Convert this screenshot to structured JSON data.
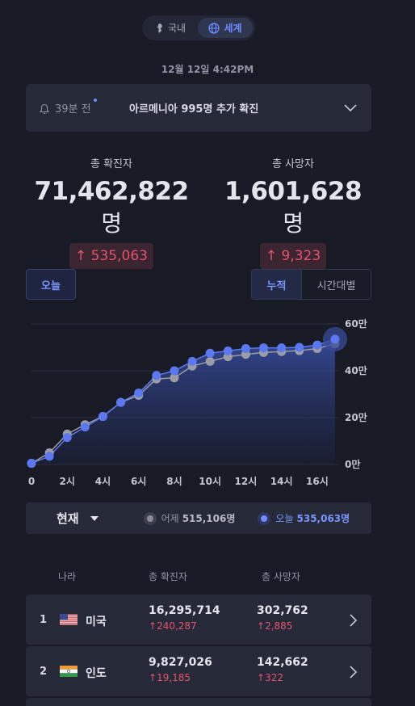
{
  "tabs": {
    "domestic": "국내",
    "world": "세계"
  },
  "timestamp": "12월 12일 4:42PM",
  "notice": {
    "ago": "39분 전",
    "message": "아르메니아 995명 추가 확진"
  },
  "stats": {
    "confirmed": {
      "label": "총 확진자",
      "value": "71,462,822",
      "unit": "명",
      "delta": "535,063"
    },
    "deaths": {
      "label": "총 사망자",
      "value": "1,601,628",
      "unit": "명",
      "delta": "9,323"
    }
  },
  "controls": {
    "today": "오늘",
    "cumulative": "누적",
    "hourly": "시간대별"
  },
  "chart_data": {
    "type": "line",
    "x": [
      0,
      1,
      2,
      3,
      4,
      5,
      6,
      7,
      8,
      9,
      10,
      11,
      12,
      13,
      14,
      15,
      16,
      17
    ],
    "xticks": [
      "0",
      "2시",
      "4시",
      "6시",
      "8시",
      "10시",
      "12시",
      "14시",
      "16시"
    ],
    "yticks": [
      "0만",
      "20만",
      "40만",
      "60만"
    ],
    "ylim": [
      0,
      600000
    ],
    "series": [
      {
        "name": "어제",
        "color": "#9a9ca6",
        "values": [
          5000,
          50000,
          130000,
          170000,
          205000,
          265000,
          295000,
          365000,
          370000,
          420000,
          440000,
          460000,
          470000,
          478000,
          482000,
          486000,
          495000,
          515106
        ]
      },
      {
        "name": "오늘",
        "color": "#5b78f0",
        "values": [
          5000,
          35000,
          115000,
          160000,
          205000,
          265000,
          305000,
          380000,
          400000,
          440000,
          475000,
          485000,
          495000,
          498000,
          498000,
          500000,
          510000,
          535063
        ]
      }
    ],
    "grid": true
  },
  "current": {
    "label": "현재",
    "yesterday_label": "어제",
    "yesterday_value": "515,106명",
    "today_label": "오늘",
    "today_value": "535,063명"
  },
  "table": {
    "headers": [
      "나라",
      "총 확진자",
      "총 사망자"
    ],
    "rows": [
      {
        "rank": "1",
        "country": "미국",
        "confirmed": "16,295,714",
        "confirmed_delta": "240,287",
        "deaths": "302,762",
        "deaths_delta": "2,885"
      },
      {
        "rank": "2",
        "country": "인도",
        "confirmed": "9,827,026",
        "confirmed_delta": "19,185",
        "deaths": "142,662",
        "deaths_delta": "322"
      }
    ]
  },
  "colors": {
    "accent": "#6f8bff",
    "increase": "#e5526d",
    "background": "#181b26",
    "card": "#262a38"
  }
}
